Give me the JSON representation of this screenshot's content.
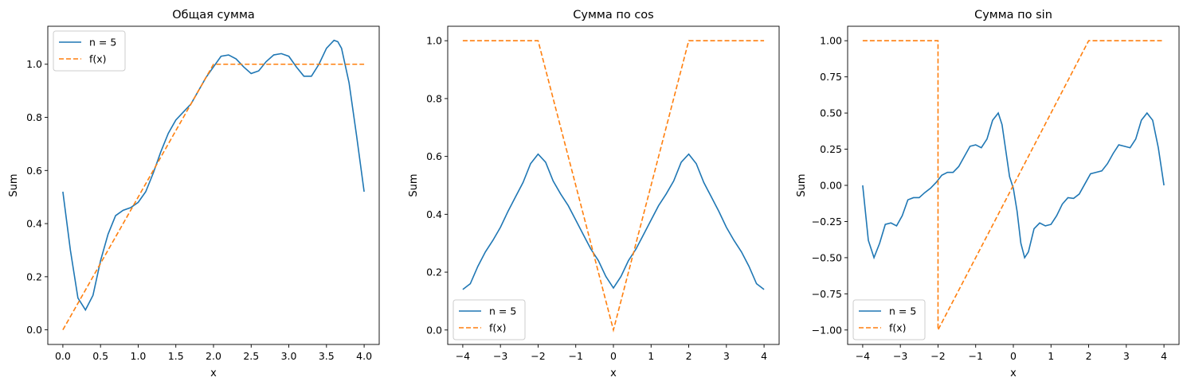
{
  "colors": {
    "series_main": "#1f77b4",
    "series_target": "#ff7f0e",
    "axis": "#000000",
    "background": "#ffffff"
  },
  "chart_data": [
    {
      "type": "line",
      "title": "Общая сумма",
      "xlabel": "x",
      "ylabel": "Sum",
      "xlim": [
        -0.2,
        4.2
      ],
      "ylim": [
        -0.055,
        1.143
      ],
      "xticks": [
        0.0,
        0.5,
        1.0,
        1.5,
        2.0,
        2.5,
        3.0,
        3.5,
        4.0
      ],
      "xtick_labels": [
        "0.0",
        "0.5",
        "1.0",
        "1.5",
        "2.0",
        "2.5",
        "3.0",
        "3.5",
        "4.0"
      ],
      "yticks": [
        0.0,
        0.2,
        0.4,
        0.6,
        0.8,
        1.0
      ],
      "ytick_labels": [
        "0.0",
        "0.2",
        "0.4",
        "0.6",
        "0.8",
        "1.0"
      ],
      "grid": false,
      "legend": {
        "position": "upper-left",
        "entries": [
          "n = 5",
          "f(x)"
        ]
      },
      "series": [
        {
          "name": "n = 5",
          "style": "solid",
          "color": "#1f77b4",
          "x": [
            0.0,
            0.1,
            0.2,
            0.3,
            0.4,
            0.5,
            0.6,
            0.7,
            0.8,
            0.9,
            1.0,
            1.1,
            1.2,
            1.3,
            1.4,
            1.5,
            1.6,
            1.7,
            1.8,
            1.9,
            2.0,
            2.1,
            2.2,
            2.3,
            2.4,
            2.5,
            2.6,
            2.7,
            2.8,
            2.9,
            3.0,
            3.1,
            3.2,
            3.3,
            3.4,
            3.5,
            3.6,
            3.65,
            3.7,
            3.8,
            3.9,
            4.0
          ],
          "y": [
            0.52,
            0.3,
            0.12,
            0.075,
            0.13,
            0.26,
            0.36,
            0.43,
            0.45,
            0.46,
            0.48,
            0.52,
            0.59,
            0.67,
            0.74,
            0.79,
            0.82,
            0.85,
            0.9,
            0.95,
            0.99,
            1.03,
            1.035,
            1.02,
            0.99,
            0.965,
            0.975,
            1.01,
            1.035,
            1.04,
            1.03,
            0.99,
            0.955,
            0.955,
            1.0,
            1.06,
            1.09,
            1.085,
            1.06,
            0.93,
            0.73,
            0.52
          ]
        },
        {
          "name": "f(x)",
          "style": "dashed",
          "color": "#ff7f0e",
          "x": [
            0.0,
            2.0,
            4.0
          ],
          "y": [
            0.0,
            1.0,
            1.0
          ]
        }
      ]
    },
    {
      "type": "line",
      "title": "Сумма по cos",
      "xlabel": "x",
      "ylabel": "Sum",
      "xlim": [
        -4.4,
        4.4
      ],
      "ylim": [
        -0.05,
        1.05
      ],
      "xticks": [
        -4,
        -3,
        -2,
        -1,
        0,
        1,
        2,
        3,
        4
      ],
      "xtick_labels": [
        "−4",
        "−3",
        "−2",
        "−1",
        "0",
        "1",
        "2",
        "3",
        "4"
      ],
      "yticks": [
        0.0,
        0.2,
        0.4,
        0.6,
        0.8,
        1.0
      ],
      "ytick_labels": [
        "0.0",
        "0.2",
        "0.4",
        "0.6",
        "0.8",
        "1.0"
      ],
      "grid": false,
      "legend": {
        "position": "lower-left",
        "entries": [
          "n = 5",
          "f(x)"
        ]
      },
      "series": [
        {
          "name": "n = 5",
          "style": "solid",
          "color": "#1f77b4",
          "x": [
            -4.0,
            -3.8,
            -3.6,
            -3.4,
            -3.2,
            -3.0,
            -2.8,
            -2.6,
            -2.4,
            -2.2,
            -2.0,
            -1.8,
            -1.6,
            -1.4,
            -1.2,
            -1.0,
            -0.8,
            -0.6,
            -0.4,
            -0.2,
            0.0,
            0.2,
            0.4,
            0.6,
            0.8,
            1.0,
            1.2,
            1.4,
            1.6,
            1.8,
            2.0,
            2.2,
            2.4,
            2.6,
            2.8,
            3.0,
            3.2,
            3.4,
            3.6,
            3.8,
            4.0
          ],
          "y": [
            0.14,
            0.16,
            0.22,
            0.27,
            0.31,
            0.355,
            0.41,
            0.46,
            0.51,
            0.575,
            0.608,
            0.58,
            0.515,
            0.47,
            0.43,
            0.38,
            0.33,
            0.28,
            0.24,
            0.185,
            0.145,
            0.185,
            0.24,
            0.28,
            0.33,
            0.38,
            0.43,
            0.47,
            0.515,
            0.58,
            0.608,
            0.575,
            0.51,
            0.46,
            0.41,
            0.355,
            0.31,
            0.27,
            0.22,
            0.16,
            0.14
          ]
        },
        {
          "name": "f(x)",
          "style": "dashed",
          "color": "#ff7f0e",
          "x": [
            -4.0,
            -2.0,
            0.0,
            2.0,
            4.0
          ],
          "y": [
            1.0,
            1.0,
            0.0,
            1.0,
            1.0
          ]
        }
      ]
    },
    {
      "type": "line",
      "title": "Сумма по sin",
      "xlabel": "x",
      "ylabel": "Sum",
      "xlim": [
        -4.4,
        4.4
      ],
      "ylim": [
        -1.1,
        1.1
      ],
      "xticks": [
        -4,
        -3,
        -2,
        -1,
        0,
        1,
        2,
        3,
        4
      ],
      "xtick_labels": [
        "−4",
        "−3",
        "−2",
        "−1",
        "0",
        "1",
        "2",
        "3",
        "4"
      ],
      "yticks": [
        -1.0,
        -0.75,
        -0.5,
        -0.25,
        0.0,
        0.25,
        0.5,
        0.75,
        1.0
      ],
      "ytick_labels": [
        "−1.00",
        "−0.75",
        "−0.50",
        "−0.25",
        "0.00",
        "0.25",
        "0.50",
        "0.75",
        "1.00"
      ],
      "grid": false,
      "legend": {
        "position": "lower-left",
        "entries": [
          "n = 5",
          "f(x)"
        ]
      },
      "series": [
        {
          "name": "n = 5",
          "style": "solid",
          "color": "#1f77b4",
          "x": [
            -4.0,
            -3.85,
            -3.7,
            -3.55,
            -3.4,
            -3.25,
            -3.1,
            -2.95,
            -2.8,
            -2.65,
            -2.5,
            -2.35,
            -2.2,
            -2.05,
            -1.9,
            -1.75,
            -1.6,
            -1.45,
            -1.3,
            -1.15,
            -1.0,
            -0.85,
            -0.7,
            -0.55,
            -0.4,
            -0.3,
            -0.2,
            -0.1,
            0.0,
            0.1,
            0.2,
            0.3,
            0.4,
            0.55,
            0.7,
            0.85,
            1.0,
            1.15,
            1.3,
            1.45,
            1.6,
            1.75,
            1.9,
            2.05,
            2.2,
            2.35,
            2.5,
            2.65,
            2.8,
            2.95,
            3.1,
            3.25,
            3.4,
            3.55,
            3.7,
            3.85,
            4.0
          ],
          "y": [
            0.0,
            -0.38,
            -0.5,
            -0.4,
            -0.27,
            -0.26,
            -0.28,
            -0.21,
            -0.1,
            -0.085,
            -0.085,
            -0.05,
            -0.02,
            0.02,
            0.07,
            0.09,
            0.09,
            0.13,
            0.2,
            0.27,
            0.28,
            0.26,
            0.32,
            0.45,
            0.5,
            0.42,
            0.24,
            0.06,
            -0.02,
            -0.18,
            -0.4,
            -0.5,
            -0.46,
            -0.3,
            -0.26,
            -0.28,
            -0.27,
            -0.21,
            -0.13,
            -0.085,
            -0.09,
            -0.06,
            0.01,
            0.08,
            0.09,
            0.1,
            0.15,
            0.22,
            0.28,
            0.27,
            0.26,
            0.32,
            0.45,
            0.5,
            0.45,
            0.26,
            0.0
          ]
        },
        {
          "name": "f(x)",
          "style": "dashed",
          "color": "#ff7f0e",
          "x": [
            -4.0,
            -2.0,
            -2.0,
            2.0,
            4.0
          ],
          "y": [
            1.0,
            1.0,
            -1.0,
            1.0,
            1.0
          ]
        }
      ]
    }
  ]
}
